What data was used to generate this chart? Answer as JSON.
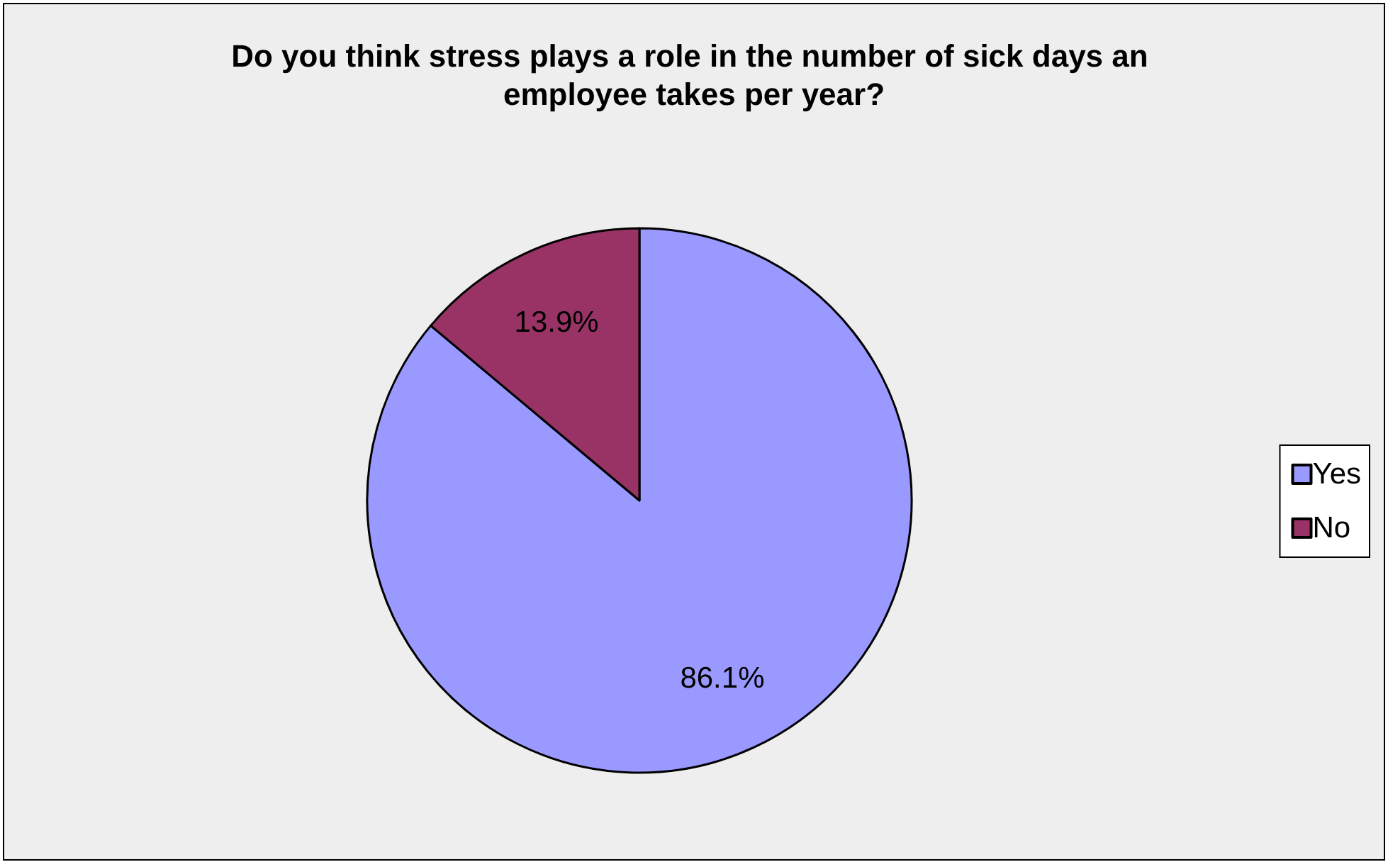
{
  "chart_data": {
    "type": "pie",
    "title": "Do you think stress plays a role in the number of sick days an employee takes per year?",
    "categories": [
      "Yes",
      "No"
    ],
    "values": [
      86.1,
      13.9
    ],
    "colors": [
      "#9999ff",
      "#993366"
    ],
    "value_labels": [
      "86.1%",
      "13.9%"
    ],
    "legend": "right"
  }
}
